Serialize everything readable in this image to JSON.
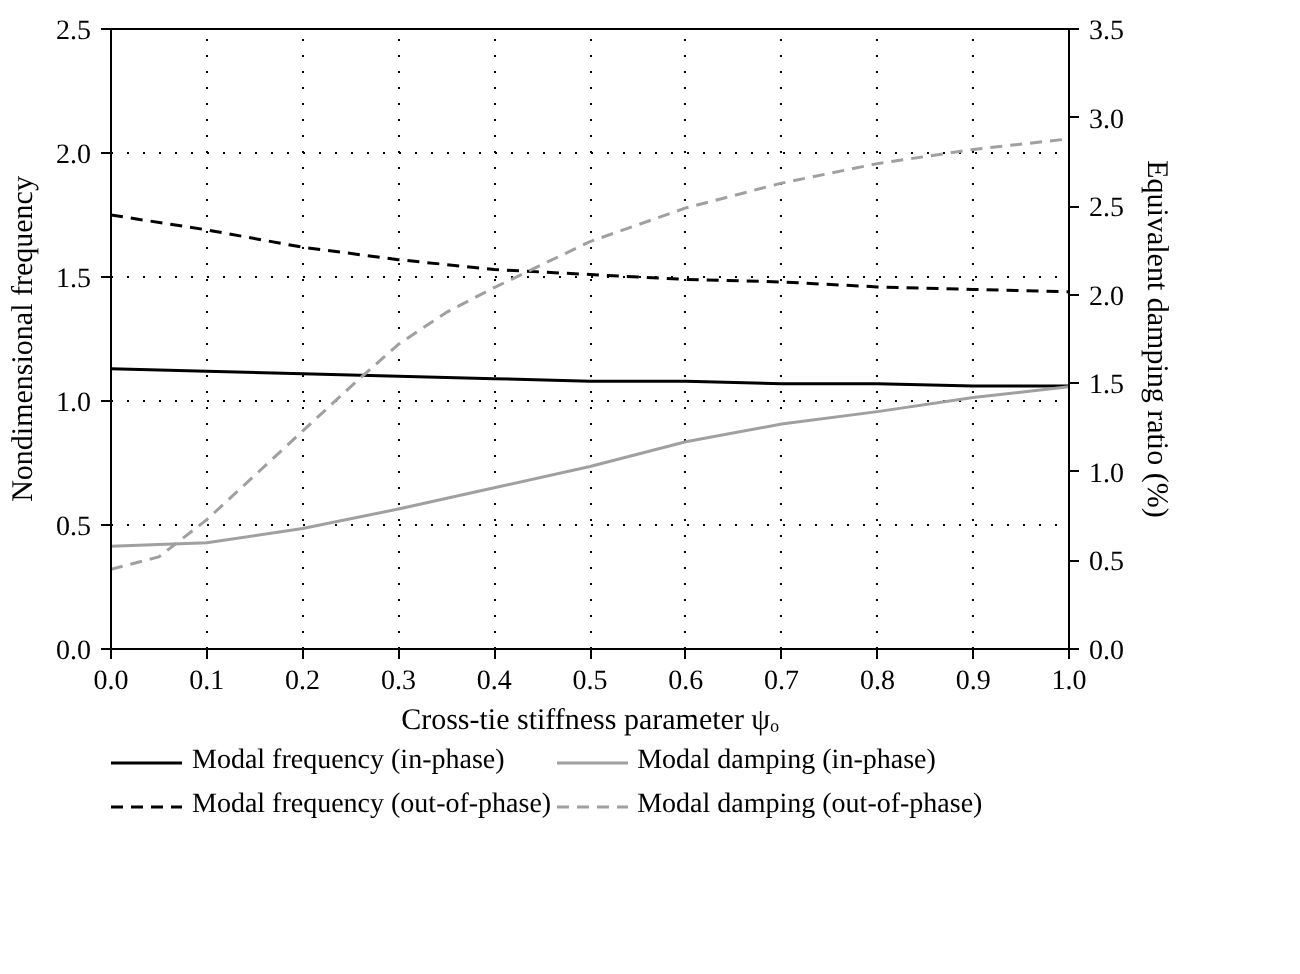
{
  "chart_data": {
    "type": "line",
    "xlabel": "Cross-tie stiffness parameter ψₒ",
    "ylabel": "Nondimensional frequency",
    "y2label": "Equivalent damping ratio (%)",
    "xlim": [
      0,
      1
    ],
    "xticks": [
      {
        "value": 0,
        "label": "0.0"
      },
      0.1,
      0.2,
      0.3,
      0.4,
      0.5,
      0.6,
      0.7,
      0.8,
      0.9,
      {
        "value": 1,
        "label": "1.0"
      }
    ],
    "ylim": [
      0,
      2.5
    ],
    "yticks": [
      {
        "value": 0,
        "label": "0.0"
      },
      0.5,
      {
        "value": 1,
        "label": "1.0"
      },
      1.5,
      {
        "value": 2,
        "label": "2.0"
      },
      2.5
    ],
    "y2lim": [
      0,
      3.5
    ],
    "y2ticks": [
      {
        "value": 0,
        "label": "0.0"
      },
      0.5,
      {
        "value": 1,
        "label": "1.0"
      },
      1.5,
      {
        "value": 2,
        "label": "2.0"
      },
      2.5,
      {
        "value": 3,
        "label": "3.0"
      },
      3.5
    ],
    "grid": true,
    "legend": "bottom",
    "series": [
      {
        "name": "Modal frequency (in-phase)",
        "color": "#000000",
        "line_style": "solid",
        "x": [
          0,
          0.1,
          0.2,
          0.3,
          0.4,
          0.5,
          0.6,
          0.7,
          0.8,
          0.9,
          1
        ],
        "values": [
          1.13,
          1.12,
          1.11,
          1.1,
          1.09,
          1.08,
          1.08,
          1.07,
          1.07,
          1.06,
          1.06
        ]
      },
      {
        "name": "Modal frequency (out-of-phase)",
        "color": "#000000",
        "line_style": "dashed",
        "x": [
          0,
          0.1,
          0.2,
          0.3,
          0.4,
          0.5,
          0.6,
          0.7,
          0.8,
          0.9,
          1
        ],
        "values": [
          1.75,
          1.69,
          1.62,
          1.57,
          1.53,
          1.51,
          1.49,
          1.48,
          1.46,
          1.45,
          1.44
        ]
      },
      {
        "name": "Modal damping (in-phase)",
        "color": "#a0a0a0",
        "line_style": "solid",
        "axis": "y2",
        "x": [
          0,
          0.1,
          0.2,
          0.3,
          0.4,
          0.5,
          0.6,
          0.7,
          0.8,
          0.9,
          1
        ],
        "values": [
          0.58,
          0.6,
          0.68,
          0.79,
          0.91,
          1.03,
          1.17,
          1.27,
          1.34,
          1.42,
          1.48
        ]
      },
      {
        "name": "Modal damping (out-of-phase)",
        "color": "#a0a0a0",
        "line_style": "dashed",
        "axis": "y2",
        "x": [
          0,
          0.05,
          0.1,
          0.15,
          0.2,
          0.25,
          0.3,
          0.35,
          0.4,
          0.5,
          0.6,
          0.7,
          0.8,
          0.9,
          1
        ],
        "values": [
          0.45,
          0.52,
          0.73,
          0.98,
          1.23,
          1.48,
          1.72,
          1.9,
          2.04,
          2.3,
          2.49,
          2.63,
          2.74,
          2.82,
          2.88
        ]
      }
    ]
  }
}
